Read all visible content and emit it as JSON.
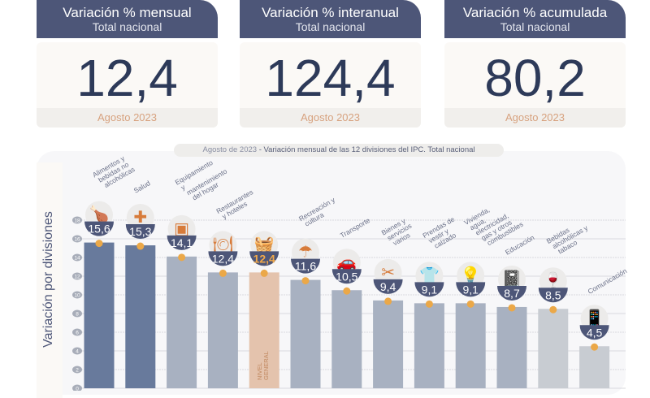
{
  "cards": [
    {
      "title": "Variación % mensual",
      "subtitle": "Total nacional",
      "value": "12,4",
      "period": "Agosto 2023"
    },
    {
      "title": "Variación % interanual",
      "subtitle": "Total nacional",
      "value": "124,4",
      "period": "Agosto 2023"
    },
    {
      "title": "Variación % acumulada",
      "subtitle": "Total nacional",
      "value": "80,2",
      "period": "Agosto 2023"
    }
  ],
  "chart_data": {
    "type": "bar",
    "title_prefix": "Agosto de 2023",
    "title": " - Variación mensual de las 12 divisiones del IPC. Total nacional",
    "ylabel": "Variación por divisiones",
    "ylim": [
      0,
      18
    ],
    "yticks": [
      0,
      2,
      4,
      6,
      8,
      10,
      12,
      14,
      16,
      18
    ],
    "general_label": "NIVEL GENERAL",
    "categories": [
      "Alimentos y bebidas no alcohólicas",
      "Salud",
      "Equipamiento y mantenimiento del hogar",
      "Restaurantes y hoteles",
      "Nivel general",
      "Recreación y cultura",
      "Transporte",
      "Bienes y servicios varios",
      "Prendas de vestir y calzado",
      "Vivienda, agua, electricidad, gas y otros combustibles",
      "Educación",
      "Bebidas alcohólicas y tabaco",
      "Comunicación"
    ],
    "values": [
      15.6,
      15.3,
      14.1,
      12.4,
      12.4,
      11.6,
      10.5,
      9.4,
      9.1,
      9.1,
      8.7,
      8.5,
      4.5
    ],
    "value_labels": [
      "15,6",
      "15,3",
      "14,1",
      "12,4",
      "12,4",
      "11,6",
      "10,5",
      "9,4",
      "9,1",
      "9,1",
      "8,7",
      "8,5",
      "4,5"
    ],
    "icons": [
      "food-icon",
      "health-icon",
      "appliance-icon",
      "restaurant-icon",
      "basket-icon",
      "recreation-icon",
      "car-icon",
      "scissors-icon",
      "clothing-icon",
      "lightbulb-icon",
      "notebook-icon",
      "wine-icon",
      "phone-icon"
    ],
    "colors": {
      "high": "#687a9c",
      "mid": "#a8b1c1",
      "low": "#c8ccd2",
      "general": "#e4c3ad",
      "badge": "#4d5678",
      "dot": "#eba848",
      "accent": "#f0a84a"
    }
  }
}
